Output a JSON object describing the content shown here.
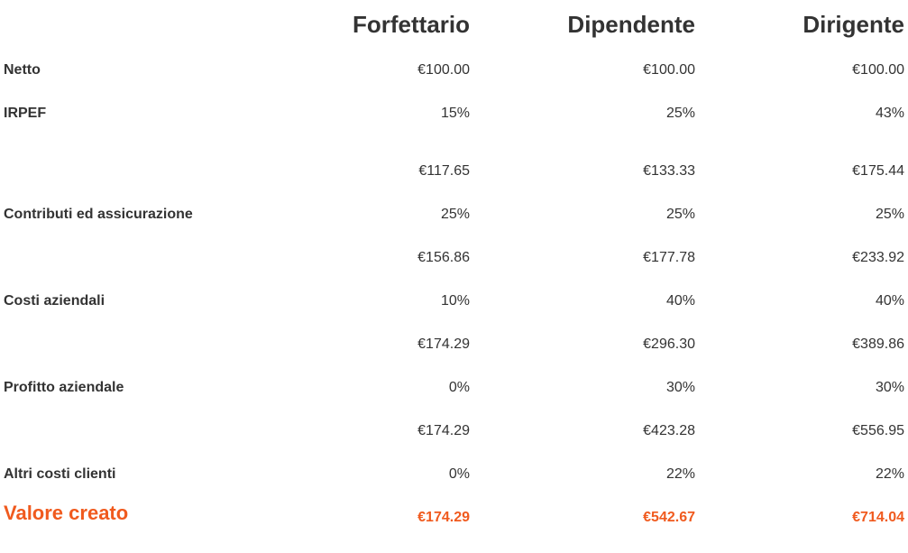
{
  "columns": [
    "Forfettario",
    "Dipendente",
    "Dirigente"
  ],
  "rows": [
    {
      "label": "Netto",
      "values": [
        "€100.00",
        "€100.00",
        "€100.00"
      ]
    },
    {
      "label": "IRPEF",
      "values": [
        "15%",
        "25%",
        "43%"
      ]
    },
    {
      "label": "",
      "values": [
        "€117.65",
        "€133.33",
        "€175.44"
      ]
    },
    {
      "label": "Contributi ed assicurazione",
      "values": [
        "25%",
        "25%",
        "25%"
      ]
    },
    {
      "label": "",
      "values": [
        "€156.86",
        "€177.78",
        "€233.92"
      ]
    },
    {
      "label": "Costi aziendali",
      "values": [
        "10%",
        "40%",
        "40%"
      ]
    },
    {
      "label": "",
      "values": [
        "€174.29",
        "€296.30",
        "€389.86"
      ]
    },
    {
      "label": "Profitto aziendale",
      "values": [
        "0%",
        "30%",
        "30%"
      ]
    },
    {
      "label": "",
      "values": [
        "€174.29",
        "€423.28",
        "€556.95"
      ]
    },
    {
      "label": "Altri costi clienti",
      "values": [
        "0%",
        "22%",
        "22%"
      ]
    }
  ],
  "final": {
    "label": "Valore creato",
    "values": [
      "€174.29",
      "€542.67",
      "€714.04"
    ]
  },
  "colors": {
    "text": "#333333",
    "accent": "#f05a1e",
    "background": "#ffffff"
  }
}
